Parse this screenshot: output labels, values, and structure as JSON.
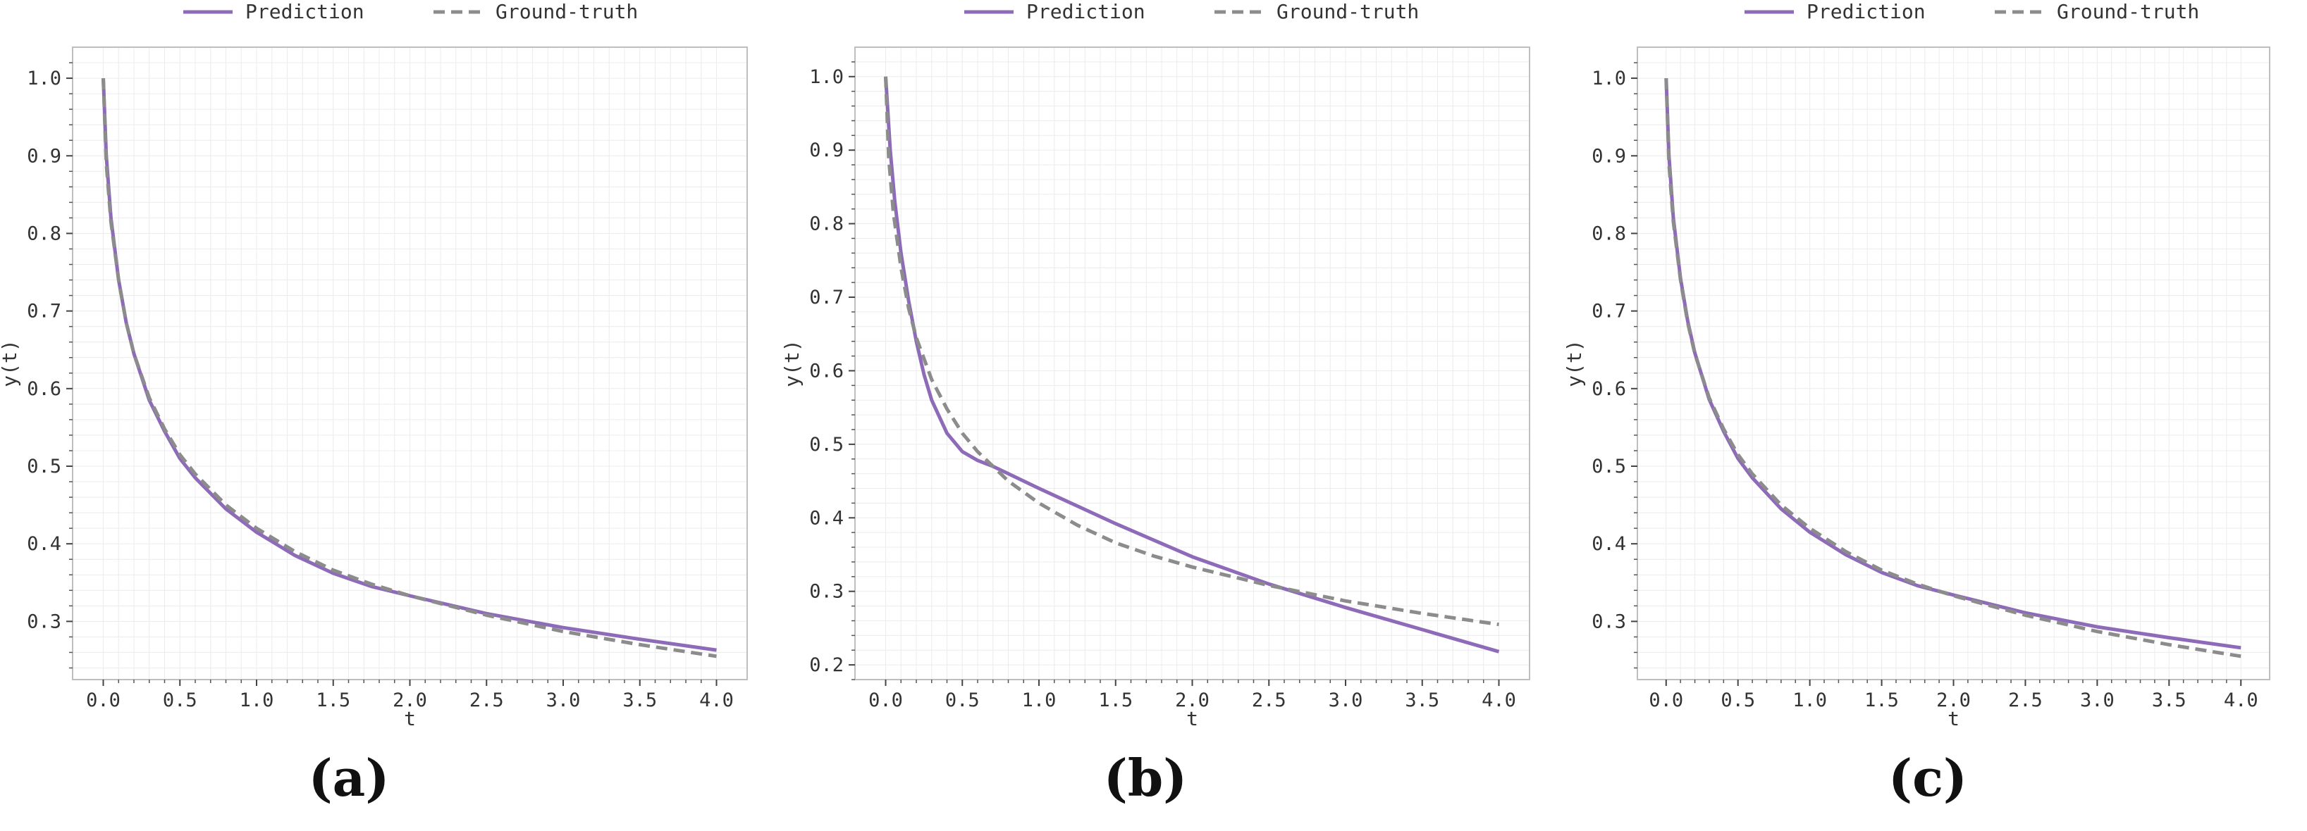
{
  "colors": {
    "prediction": "#8e6bb8",
    "ground_truth": "#8c8c8c",
    "grid": "#ececec",
    "frame": "#bfbfbf",
    "tick_text": "#333333"
  },
  "chart_data": [
    {
      "type": "line",
      "caption": "(a)",
      "xlabel": "t",
      "ylabel": "y(t)",
      "xlim": [
        -0.2,
        4.2
      ],
      "ylim": [
        0.225,
        1.04
      ],
      "xticks": [
        0.0,
        0.5,
        1.0,
        1.5,
        2.0,
        2.5,
        3.0,
        3.5,
        4.0
      ],
      "xtick_labels": [
        "0.0",
        "0.5",
        "1.0",
        "1.5",
        "2.0",
        "2.5",
        "3.0",
        "3.5",
        "4.0"
      ],
      "yticks": [
        0.3,
        0.4,
        0.5,
        0.6,
        0.7,
        0.8,
        0.9,
        1.0
      ],
      "ytick_labels": [
        "0.3",
        "0.4",
        "0.5",
        "0.6",
        "0.7",
        "0.8",
        "0.9",
        "1.0"
      ],
      "grid": true,
      "legend": {
        "placement": "top-center",
        "entries": [
          "Prediction",
          "Ground-truth"
        ]
      },
      "series": [
        {
          "name": "Prediction",
          "style": "solid",
          "x": [
            0.0,
            0.02,
            0.05,
            0.1,
            0.15,
            0.2,
            0.3,
            0.4,
            0.5,
            0.6,
            0.8,
            1.0,
            1.25,
            1.5,
            1.75,
            2.0,
            2.5,
            3.0,
            3.5,
            4.0
          ],
          "y": [
            1.0,
            0.9,
            0.82,
            0.74,
            0.685,
            0.645,
            0.585,
            0.545,
            0.51,
            0.485,
            0.445,
            0.415,
            0.385,
            0.362,
            0.345,
            0.333,
            0.31,
            0.292,
            0.277,
            0.263
          ]
        },
        {
          "name": "Ground-truth",
          "style": "dashed",
          "x": [
            0.0,
            0.02,
            0.05,
            0.1,
            0.15,
            0.2,
            0.3,
            0.4,
            0.5,
            0.6,
            0.8,
            1.0,
            1.25,
            1.5,
            1.75,
            2.0,
            2.5,
            3.0,
            3.5,
            4.0
          ],
          "y": [
            1.0,
            0.89,
            0.815,
            0.74,
            0.685,
            0.645,
            0.588,
            0.548,
            0.515,
            0.49,
            0.45,
            0.42,
            0.39,
            0.366,
            0.348,
            0.333,
            0.308,
            0.287,
            0.27,
            0.255
          ]
        }
      ]
    },
    {
      "type": "line",
      "caption": "(b)",
      "xlabel": "t",
      "ylabel": "y(t)",
      "xlim": [
        -0.2,
        4.2
      ],
      "ylim": [
        0.18,
        1.04
      ],
      "xticks": [
        0.0,
        0.5,
        1.0,
        1.5,
        2.0,
        2.5,
        3.0,
        3.5,
        4.0
      ],
      "xtick_labels": [
        "0.0",
        "0.5",
        "1.0",
        "1.5",
        "2.0",
        "2.5",
        "3.0",
        "3.5",
        "4.0"
      ],
      "yticks": [
        0.2,
        0.3,
        0.4,
        0.5,
        0.6,
        0.7,
        0.8,
        0.9,
        1.0
      ],
      "ytick_labels": [
        "0.2",
        "0.3",
        "0.4",
        "0.5",
        "0.6",
        "0.7",
        "0.8",
        "0.9",
        "1.0"
      ],
      "grid": true,
      "legend": {
        "placement": "top-center",
        "entries": [
          "Prediction",
          "Ground-truth"
        ]
      },
      "series": [
        {
          "name": "Prediction",
          "style": "solid",
          "x": [
            0.0,
            0.03,
            0.06,
            0.1,
            0.15,
            0.2,
            0.25,
            0.3,
            0.4,
            0.5,
            0.6,
            0.7,
            0.8,
            1.0,
            1.5,
            2.0,
            2.5,
            3.0,
            3.5,
            4.0
          ],
          "y": [
            1.0,
            0.9,
            0.83,
            0.76,
            0.695,
            0.64,
            0.595,
            0.56,
            0.515,
            0.49,
            0.478,
            0.47,
            0.46,
            0.44,
            0.392,
            0.347,
            0.31,
            0.278,
            0.248,
            0.218
          ]
        },
        {
          "name": "Ground-truth",
          "style": "dashed",
          "x": [
            0.0,
            0.02,
            0.05,
            0.1,
            0.15,
            0.2,
            0.3,
            0.4,
            0.5,
            0.6,
            0.8,
            1.0,
            1.25,
            1.5,
            1.75,
            2.0,
            2.5,
            3.0,
            3.5,
            4.0
          ],
          "y": [
            1.0,
            0.89,
            0.815,
            0.74,
            0.685,
            0.645,
            0.588,
            0.548,
            0.515,
            0.49,
            0.45,
            0.42,
            0.39,
            0.366,
            0.348,
            0.333,
            0.308,
            0.287,
            0.27,
            0.255
          ]
        }
      ]
    },
    {
      "type": "line",
      "caption": "(c)",
      "xlabel": "t",
      "ylabel": "y(t)",
      "xlim": [
        -0.2,
        4.2
      ],
      "ylim": [
        0.225,
        1.04
      ],
      "xticks": [
        0.0,
        0.5,
        1.0,
        1.5,
        2.0,
        2.5,
        3.0,
        3.5,
        4.0
      ],
      "xtick_labels": [
        "0.0",
        "0.5",
        "1.0",
        "1.5",
        "2.0",
        "2.5",
        "3.0",
        "3.5",
        "4.0"
      ],
      "yticks": [
        0.3,
        0.4,
        0.5,
        0.6,
        0.7,
        0.8,
        0.9,
        1.0
      ],
      "ytick_labels": [
        "0.3",
        "0.4",
        "0.5",
        "0.6",
        "0.7",
        "0.8",
        "0.9",
        "1.0"
      ],
      "grid": true,
      "legend": {
        "placement": "top-center",
        "entries": [
          "Prediction",
          "Ground-truth"
        ]
      },
      "series": [
        {
          "name": "Prediction",
          "style": "solid",
          "x": [
            0.0,
            0.02,
            0.05,
            0.1,
            0.15,
            0.2,
            0.3,
            0.4,
            0.5,
            0.6,
            0.8,
            1.0,
            1.25,
            1.5,
            1.75,
            2.0,
            2.5,
            3.0,
            3.5,
            4.0
          ],
          "y": [
            1.0,
            0.9,
            0.82,
            0.742,
            0.687,
            0.646,
            0.586,
            0.545,
            0.51,
            0.485,
            0.445,
            0.415,
            0.386,
            0.363,
            0.346,
            0.334,
            0.311,
            0.293,
            0.279,
            0.266
          ]
        },
        {
          "name": "Ground-truth",
          "style": "dashed",
          "x": [
            0.0,
            0.02,
            0.05,
            0.1,
            0.15,
            0.2,
            0.3,
            0.4,
            0.5,
            0.6,
            0.8,
            1.0,
            1.25,
            1.5,
            1.75,
            2.0,
            2.5,
            3.0,
            3.5,
            4.0
          ],
          "y": [
            1.0,
            0.89,
            0.815,
            0.74,
            0.685,
            0.645,
            0.588,
            0.548,
            0.515,
            0.49,
            0.45,
            0.42,
            0.39,
            0.366,
            0.348,
            0.333,
            0.308,
            0.287,
            0.27,
            0.255
          ]
        }
      ]
    }
  ]
}
